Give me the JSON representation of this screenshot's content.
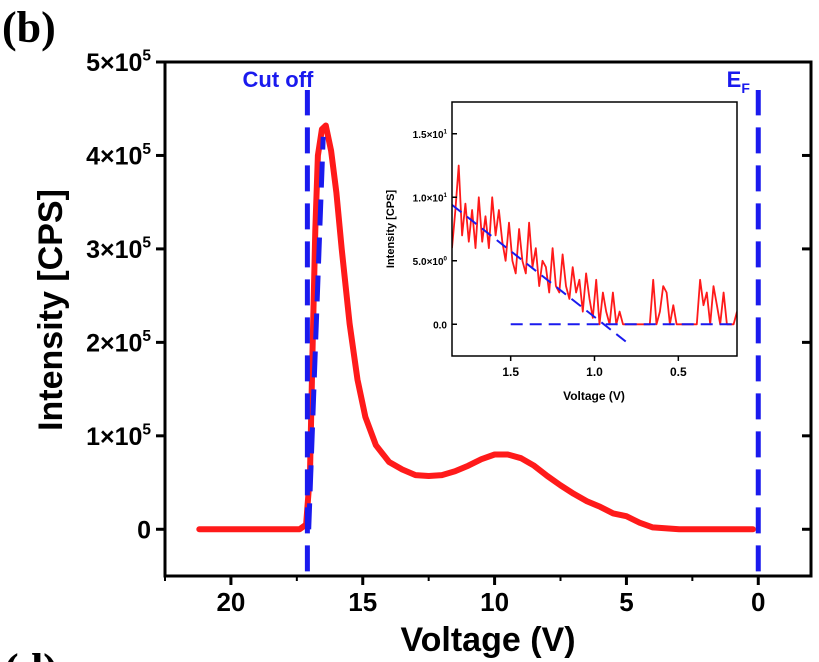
{
  "panel_label": "(b)",
  "next_panel_label": "(d)",
  "colors": {
    "spectrum": "#ff1a1a",
    "fit": "#1a1aee",
    "axis": "#000000"
  },
  "chart_data": [
    {
      "type": "line",
      "xlabel": "Voltage (V)",
      "ylabel": "Intensity [CPS]",
      "xlim": [
        22.5,
        -2
      ],
      "x_reversed": true,
      "ylim": [
        -50000,
        500000
      ],
      "x_ticks": [
        20,
        15,
        10,
        5,
        0
      ],
      "x_tick_labels": [
        "20",
        "15",
        "10",
        "5",
        "0"
      ],
      "y_ticks": [
        0,
        100000,
        200000,
        300000,
        400000,
        500000
      ],
      "y_tick_labels": [
        {
          "mantissa": "0",
          "exp": ""
        },
        {
          "mantissa": "1×10",
          "exp": "5"
        },
        {
          "mantissa": "2×10",
          "exp": "5"
        },
        {
          "mantissa": "3×10",
          "exp": "5"
        },
        {
          "mantissa": "4×10",
          "exp": "5"
        },
        {
          "mantissa": "5×10",
          "exp": "5"
        }
      ],
      "grid": false,
      "series": [
        {
          "style": "solid",
          "color": "#ff1a1a",
          "x": [
            21.2,
            19,
            17.4,
            17.15,
            17.0,
            16.9,
            16.8,
            16.7,
            16.55,
            16.4,
            16.2,
            16.0,
            15.8,
            15.5,
            15.2,
            14.9,
            14.5,
            14.0,
            13.5,
            13.0,
            12.5,
            12.0,
            11.5,
            11.0,
            10.5,
            10.0,
            9.5,
            9.0,
            8.5,
            8.0,
            7.5,
            7.0,
            6.5,
            6.0,
            5.5,
            5.0,
            4.5,
            4.0,
            3.0,
            2.0,
            1.0,
            0.2
          ],
          "y": [
            0,
            0,
            0,
            5000,
            60000,
            200000,
            320000,
            400000,
            428000,
            432000,
            405000,
            360000,
            300000,
            220000,
            160000,
            120000,
            90000,
            72000,
            64000,
            58000,
            57000,
            58000,
            62000,
            68000,
            75000,
            80000,
            80000,
            76000,
            68000,
            57000,
            47000,
            38000,
            30000,
            24000,
            17000,
            14000,
            7000,
            2000,
            0,
            0,
            0,
            0
          ]
        }
      ],
      "annotations": [
        {
          "text": "Cut off",
          "x": 17.1,
          "style": "vertical-dashed",
          "color": "#1a1aee",
          "y_from": -45000,
          "y_to": 470000
        },
        {
          "text": "E",
          "sub": "F",
          "x": 0,
          "style": "vertical-dashed",
          "color": "#1a1aee",
          "y_from": -45000,
          "y_to": 470000
        }
      ],
      "fit_line": {
        "x": [
          17.05,
          16.5
        ],
        "y": [
          0,
          420000
        ],
        "color": "#1a1aee",
        "style": "dashed"
      }
    },
    {
      "type": "line",
      "inset": true,
      "xlabel": "Voltage (V)",
      "ylabel": "Intensity [CPS]",
      "xlim": [
        1.85,
        0.15
      ],
      "x_reversed": true,
      "ylim": [
        -2.5,
        17.5
      ],
      "x_ticks": [
        1.5,
        1.0,
        0.5
      ],
      "x_tick_labels": [
        "1.5",
        "1.0",
        "0.5"
      ],
      "y_ticks": [
        0,
        5,
        10,
        15
      ],
      "y_tick_labels": [
        {
          "mantissa": "0.0",
          "exp": ""
        },
        {
          "mantissa": "5.0×10",
          "exp": "0"
        },
        {
          "mantissa": "1.0×10",
          "exp": "1"
        },
        {
          "mantissa": "1.5×10",
          "exp": "1"
        }
      ],
      "grid": false,
      "series": [
        {
          "style": "solid",
          "color": "#ff1a1a",
          "x": [
            1.85,
            1.83,
            1.81,
            1.79,
            1.77,
            1.75,
            1.73,
            1.71,
            1.69,
            1.67,
            1.65,
            1.63,
            1.61,
            1.59,
            1.57,
            1.55,
            1.53,
            1.51,
            1.49,
            1.47,
            1.45,
            1.43,
            1.41,
            1.39,
            1.37,
            1.35,
            1.33,
            1.31,
            1.29,
            1.27,
            1.25,
            1.23,
            1.21,
            1.19,
            1.17,
            1.15,
            1.13,
            1.11,
            1.09,
            1.07,
            1.05,
            1.03,
            1.01,
            0.99,
            0.97,
            0.95,
            0.93,
            0.91,
            0.89,
            0.87,
            0.85,
            0.83,
            0.81,
            0.79,
            0.77,
            0.75,
            0.73,
            0.71,
            0.69,
            0.67,
            0.65,
            0.63,
            0.61,
            0.59,
            0.57,
            0.55,
            0.53,
            0.51,
            0.49,
            0.47,
            0.45,
            0.43,
            0.41,
            0.39,
            0.37,
            0.35,
            0.33,
            0.31,
            0.29,
            0.27,
            0.25,
            0.23,
            0.21,
            0.19,
            0.17,
            0.15
          ],
          "y": [
            6,
            9,
            12.5,
            7,
            9.5,
            6.5,
            9,
            6,
            10,
            6.5,
            8.5,
            6,
            10,
            7,
            9,
            6.5,
            5,
            8,
            5,
            4,
            7.5,
            5,
            4,
            8,
            4.5,
            6,
            3,
            5,
            4.5,
            2.5,
            6,
            3,
            2.5,
            5.5,
            3,
            2,
            4.5,
            2.5,
            3.5,
            1,
            4,
            2,
            0.5,
            3.5,
            0,
            2.5,
            1,
            0,
            2.5,
            0,
            1,
            0,
            0,
            0,
            0,
            0,
            0,
            0,
            0,
            0,
            3.5,
            0,
            1,
            3,
            2.5,
            0,
            1.5,
            0,
            0,
            0,
            0,
            0,
            0,
            0,
            3.5,
            1.5,
            2.5,
            0,
            3,
            1.5,
            0,
            2.5,
            0,
            0,
            0,
            1
          ]
        }
      ],
      "fit_lines": [
        {
          "x": [
            1.85,
            0.8
          ],
          "y": [
            9.4,
            -1.5
          ],
          "color": "#1a1aee",
          "style": "dashed"
        },
        {
          "x": [
            1.5,
            0.15
          ],
          "y": [
            0,
            0
          ],
          "color": "#1a1aee",
          "style": "dashed"
        }
      ]
    }
  ]
}
